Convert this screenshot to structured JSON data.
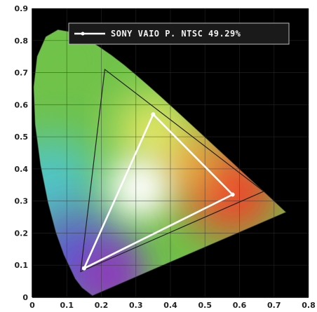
{
  "chart_data": {
    "type": "scatter",
    "title": "",
    "xlabel": "",
    "ylabel": "",
    "xlim": [
      0,
      0.8
    ],
    "ylim": [
      0,
      0.9
    ],
    "x_ticks": [
      "0",
      "0.1",
      "0.2",
      "0.3",
      "0.4",
      "0.5",
      "0.6",
      "0.7",
      "0.8"
    ],
    "y_ticks": [
      "0",
      "0.1",
      "0.2",
      "0.3",
      "0.4",
      "0.5",
      "0.6",
      "0.7",
      "0.8",
      "0.9"
    ],
    "grid": true,
    "legend_position": "top-center",
    "legend_entries": [
      "SONY VAIO P. NTSC 49.29%"
    ],
    "background_color": "#000000",
    "series": [
      {
        "name": "SONY VAIO P. NTSC 49.29%",
        "color": "#ffffff",
        "points": [
          {
            "x": 0.58,
            "y": 0.32
          },
          {
            "x": 0.35,
            "y": 0.57
          },
          {
            "x": 0.15,
            "y": 0.09
          }
        ]
      }
    ],
    "reference_triangle": {
      "color": "#222222",
      "points": [
        {
          "x": 0.67,
          "y": 0.33
        },
        {
          "x": 0.21,
          "y": 0.71
        },
        {
          "x": 0.14,
          "y": 0.08
        }
      ]
    },
    "spectral_locus": [
      {
        "x": 0.1741,
        "y": 0.005
      },
      {
        "x": 0.144,
        "y": 0.0297
      },
      {
        "x": 0.1241,
        "y": 0.0578
      },
      {
        "x": 0.0913,
        "y": 0.1327
      },
      {
        "x": 0.0687,
        "y": 0.2007
      },
      {
        "x": 0.0454,
        "y": 0.295
      },
      {
        "x": 0.0235,
        "y": 0.4127
      },
      {
        "x": 0.0082,
        "y": 0.5384
      },
      {
        "x": 0.0039,
        "y": 0.6548
      },
      {
        "x": 0.0139,
        "y": 0.7502
      },
      {
        "x": 0.0389,
        "y": 0.812
      },
      {
        "x": 0.0743,
        "y": 0.8338
      },
      {
        "x": 0.1142,
        "y": 0.8262
      },
      {
        "x": 0.1547,
        "y": 0.8059
      },
      {
        "x": 0.1929,
        "y": 0.7816
      },
      {
        "x": 0.2296,
        "y": 0.7543
      },
      {
        "x": 0.2658,
        "y": 0.7243
      },
      {
        "x": 0.3016,
        "y": 0.6923
      },
      {
        "x": 0.3373,
        "y": 0.6589
      },
      {
        "x": 0.3731,
        "y": 0.6245
      },
      {
        "x": 0.4087,
        "y": 0.5896
      },
      {
        "x": 0.4441,
        "y": 0.5547
      },
      {
        "x": 0.4788,
        "y": 0.5202
      },
      {
        "x": 0.5125,
        "y": 0.4866
      },
      {
        "x": 0.5448,
        "y": 0.4544
      },
      {
        "x": 0.5752,
        "y": 0.4242
      },
      {
        "x": 0.6029,
        "y": 0.3965
      },
      {
        "x": 0.627,
        "y": 0.3725
      },
      {
        "x": 0.6482,
        "y": 0.3514
      },
      {
        "x": 0.6658,
        "y": 0.334
      },
      {
        "x": 0.6915,
        "y": 0.3083
      },
      {
        "x": 0.7347,
        "y": 0.2653
      }
    ],
    "colors": {
      "green": "#6fc24a",
      "cyan": "#4fc6c9",
      "blue": "#5a5ad6",
      "purple": "#8a3fb8",
      "red": "#f2402c",
      "orange": "#f59a3a",
      "yellow": "#f3f06a",
      "white": "#ffffff"
    }
  }
}
